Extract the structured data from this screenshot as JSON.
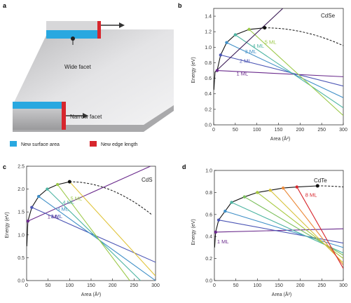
{
  "panel_a": {
    "label": "a",
    "wide_facet": "Wide facet",
    "narrow_facet": "Narrow facet",
    "legend": [
      {
        "label": "New surface area",
        "color": "#29a8e0"
      },
      {
        "label": "New edge length",
        "color": "#d7262d"
      }
    ]
  },
  "panels": [
    {
      "id": "b",
      "label": "b",
      "material": "CdSe",
      "xlabel": "Area (Å²)",
      "ylabel": "Energy (eV)"
    },
    {
      "id": "c",
      "label": "c",
      "material": "CdS",
      "xlabel": "Area (Å²)",
      "ylabel": "Energy (eV)"
    },
    {
      "id": "d",
      "label": "d",
      "material": "CdTe",
      "xlabel": "Area (Å²)",
      "ylabel": "Energy (eV)"
    }
  ],
  "chart_data": [
    {
      "type": "line",
      "panel": "b",
      "title": "CdSe",
      "xlabel": "Area (Å²)",
      "ylabel": "Energy (eV)",
      "xlim": [
        0,
        300
      ],
      "ylim": [
        0,
        1.5
      ],
      "xticks": [
        "0",
        "50",
        "100",
        "150",
        "200",
        "250",
        "300"
      ],
      "yticks": [
        "0.0",
        "0.2",
        "0.4",
        "0.6",
        "0.8",
        "1.0",
        "1.2",
        "1.4"
      ],
      "envelope_peak": {
        "x": 118,
        "y": 1.25
      },
      "envelope_end": {
        "x": 300,
        "y": 1.02
      },
      "series": [
        {
          "name": "1 ML",
          "color": "#6a2a8c",
          "points": [
            [
              8,
              0.7
            ],
            [
              300,
              0.62
            ]
          ]
        },
        {
          "name": "2 ML",
          "color": "#4c56b5",
          "points": [
            [
              16,
              0.9
            ],
            [
              300,
              0.5
            ]
          ]
        },
        {
          "name": "3 ML",
          "color": "#3f8fc7",
          "points": [
            [
              30,
              1.06
            ],
            [
              300,
              0.35
            ]
          ]
        },
        {
          "name": "4 ML",
          "color": "#4fb5a3",
          "points": [
            [
              50,
              1.16
            ],
            [
              300,
              0.22
            ]
          ]
        },
        {
          "name": "5 ML",
          "color": "#9cc94a",
          "points": [
            [
              82,
              1.23
            ],
            [
              300,
              0.12
            ]
          ]
        },
        {
          "name": "",
          "color": "#3a1a55",
          "points": [
            [
              3,
              0.68
            ],
            [
              160,
              1.5
            ]
          ]
        }
      ]
    },
    {
      "type": "line",
      "panel": "c",
      "title": "CdS",
      "xlabel": "Area (Å²)",
      "ylabel": "Energy (eV)",
      "xlim": [
        0,
        300
      ],
      "ylim": [
        0,
        2.5
      ],
      "xticks": [
        "0",
        "50",
        "100",
        "150",
        "200",
        "250",
        "300"
      ],
      "yticks": [
        "0.0",
        "0.5",
        "1.0",
        "1.5",
        "2.0",
        "2.5"
      ],
      "envelope_peak": {
        "x": 100,
        "y": 2.16
      },
      "envelope_end": {
        "x": 290,
        "y": 1.45
      },
      "series": [
        {
          "name": "1 ML",
          "color": "#6a2a8c",
          "points": [
            [
              3,
              1.3
            ],
            [
              300,
              2.55
            ]
          ]
        },
        {
          "name": "2 ML",
          "color": "#4c56b5",
          "points": [
            [
              12,
              1.6
            ],
            [
              300,
              0.4
            ]
          ]
        },
        {
          "name": "3 ML",
          "color": "#3f8fc7",
          "points": [
            [
              28,
              1.84
            ],
            [
              300,
              0.0
            ]
          ]
        },
        {
          "name": "4 ML",
          "color": "#4fb5a3",
          "points": [
            [
              48,
              2.0
            ],
            [
              265,
              0.0
            ]
          ]
        },
        {
          "name": "5 ML",
          "color": "#9cc94a",
          "points": [
            [
              72,
              2.1
            ],
            [
              240,
              0.0
            ]
          ]
        },
        {
          "name": "",
          "color": "#e0c43b",
          "points": [
            [
              100,
              2.16
            ],
            [
              300,
              0.1
            ]
          ]
        }
      ]
    },
    {
      "type": "line",
      "panel": "d",
      "title": "CdTe",
      "xlabel": "Area (Å²)",
      "ylabel": "Energy (eV)",
      "xlim": [
        0,
        300
      ],
      "ylim": [
        0,
        1.0
      ],
      "xticks": [
        "0",
        "50",
        "100",
        "150",
        "200",
        "250",
        "300"
      ],
      "yticks": [
        "0.0",
        "0.2",
        "0.4",
        "0.6",
        "0.8",
        "1.0"
      ],
      "envelope_peak": {
        "x": 240,
        "y": 0.86
      },
      "envelope_end": {
        "x": 300,
        "y": 0.85
      },
      "series": [
        {
          "name": "1 ML",
          "color": "#6a2a8c",
          "points": [
            [
              3,
              0.44
            ],
            [
              300,
              0.47
            ]
          ]
        },
        {
          "name": "",
          "color": "#4c56b5",
          "points": [
            [
              10,
              0.55
            ],
            [
              300,
              0.34
            ]
          ]
        },
        {
          "name": "",
          "color": "#3f8fc7",
          "points": [
            [
              25,
              0.63
            ],
            [
              300,
              0.3
            ]
          ]
        },
        {
          "name": "",
          "color": "#4fb5a3",
          "points": [
            [
              40,
              0.71
            ],
            [
              300,
              0.25
            ]
          ]
        },
        {
          "name": "",
          "color": "#7bbf5c",
          "points": [
            [
              70,
              0.76
            ],
            [
              300,
              0.23
            ]
          ]
        },
        {
          "name": "",
          "color": "#a7c93f",
          "points": [
            [
              100,
              0.8
            ],
            [
              300,
              0.2
            ]
          ]
        },
        {
          "name": "",
          "color": "#d7c23a",
          "points": [
            [
              130,
              0.82
            ],
            [
              300,
              0.16
            ]
          ]
        },
        {
          "name": "",
          "color": "#eb8a3a",
          "points": [
            [
              160,
              0.84
            ],
            [
              300,
              0.14
            ]
          ]
        },
        {
          "name": "8 ML",
          "color": "#d7262d",
          "points": [
            [
              192,
              0.85
            ],
            [
              300,
              0.11
            ]
          ]
        }
      ]
    }
  ]
}
